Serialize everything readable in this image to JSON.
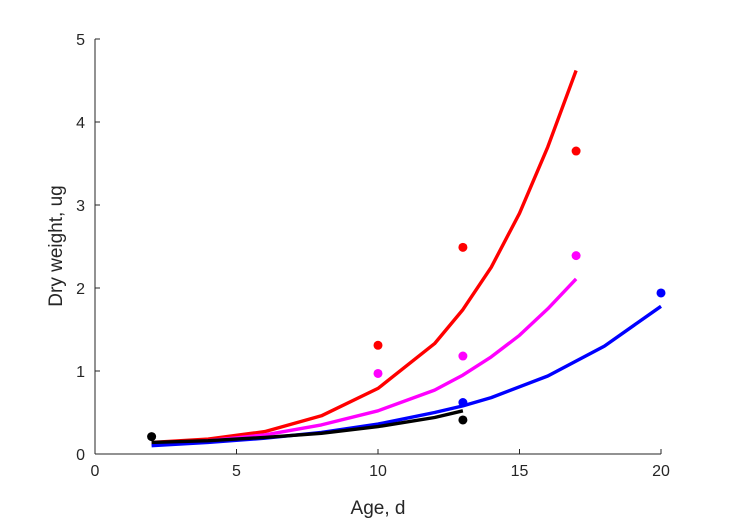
{
  "chart_data": {
    "type": "scatter",
    "title": "",
    "xlabel": "Age, d",
    "ylabel": "Dry weight, ug",
    "xlim": [
      0,
      20
    ],
    "ylim": [
      0,
      5
    ],
    "xticks": [
      0,
      5,
      10,
      15,
      20
    ],
    "yticks": [
      0,
      1,
      2,
      3,
      4,
      5
    ],
    "grid": false,
    "series": [
      {
        "color": "#ff0000",
        "points": [
          [
            10,
            1.31
          ],
          [
            13,
            2.49
          ],
          [
            17,
            3.65
          ]
        ],
        "fit": [
          [
            2,
            0.14
          ],
          [
            4,
            0.18
          ],
          [
            6,
            0.27
          ],
          [
            8,
            0.46
          ],
          [
            10,
            0.79
          ],
          [
            12,
            1.33
          ],
          [
            13,
            1.74
          ],
          [
            14,
            2.25
          ],
          [
            15,
            2.9
          ],
          [
            16,
            3.7
          ],
          [
            17,
            4.62
          ]
        ]
      },
      {
        "color": "#ff00ff",
        "points": [
          [
            10,
            0.97
          ],
          [
            13,
            1.18
          ],
          [
            17,
            2.39
          ]
        ],
        "fit": [
          [
            2,
            0.12
          ],
          [
            4,
            0.16
          ],
          [
            6,
            0.23
          ],
          [
            8,
            0.35
          ],
          [
            10,
            0.52
          ],
          [
            12,
            0.77
          ],
          [
            13,
            0.95
          ],
          [
            14,
            1.17
          ],
          [
            15,
            1.43
          ],
          [
            16,
            1.75
          ],
          [
            17,
            2.11
          ]
        ]
      },
      {
        "color": "#0000ff",
        "points": [
          [
            13,
            0.62
          ],
          [
            20,
            1.94
          ]
        ],
        "fit": [
          [
            2,
            0.1
          ],
          [
            4,
            0.14
          ],
          [
            6,
            0.19
          ],
          [
            8,
            0.26
          ],
          [
            10,
            0.36
          ],
          [
            12,
            0.5
          ],
          [
            13,
            0.58
          ],
          [
            14,
            0.68
          ],
          [
            16,
            0.94
          ],
          [
            18,
            1.3
          ],
          [
            20,
            1.78
          ]
        ]
      },
      {
        "color": "#000000",
        "points": [
          [
            2,
            0.21
          ],
          [
            13,
            0.41
          ]
        ],
        "fit": [
          [
            2,
            0.14
          ],
          [
            4,
            0.16
          ],
          [
            6,
            0.2
          ],
          [
            8,
            0.25
          ],
          [
            10,
            0.33
          ],
          [
            12,
            0.44
          ],
          [
            13,
            0.52
          ]
        ]
      }
    ]
  }
}
